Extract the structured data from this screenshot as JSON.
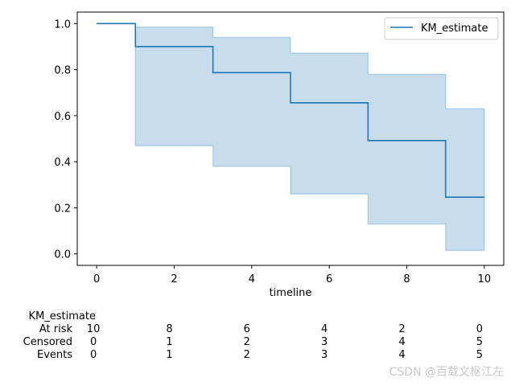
{
  "chart_data": {
    "type": "line",
    "xlabel": "timeline",
    "ylabel": "",
    "xlim": [
      -0.5,
      10.5
    ],
    "ylim": [
      -0.05,
      1.05
    ],
    "xticks": [
      0,
      2,
      4,
      6,
      8,
      10
    ],
    "yticks": [
      0.0,
      0.2,
      0.4,
      0.6,
      0.8,
      1.0
    ],
    "series": [
      {
        "name": "KM_estimate",
        "step": "post",
        "x": [
          0,
          1,
          3,
          5,
          7,
          9,
          10
        ],
        "y": [
          1.0,
          0.9,
          0.787,
          0.656,
          0.492,
          0.246,
          0.246
        ],
        "ci_upper": [
          1.0,
          0.985,
          0.94,
          0.872,
          0.78,
          0.63,
          0.63
        ],
        "ci_lower": [
          1.0,
          0.47,
          0.38,
          0.26,
          0.13,
          0.015,
          0.015
        ],
        "color": "#1f77b4"
      }
    ],
    "legend": {
      "position": "top-right",
      "entries": [
        "KM_estimate"
      ]
    }
  },
  "at_risk_table": {
    "title": "KM_estimate",
    "times": [
      0,
      2,
      4,
      6,
      8,
      10
    ],
    "rows": [
      {
        "label": "At risk",
        "values": [
          "10",
          "8",
          "6",
          "4",
          "2",
          "0"
        ]
      },
      {
        "label": "Censored",
        "values": [
          "0",
          "1",
          "2",
          "3",
          "4",
          "5"
        ]
      },
      {
        "label": "Events",
        "values": [
          "0",
          "1",
          "2",
          "3",
          "4",
          "5"
        ]
      }
    ]
  },
  "watermark": "CSDN @百载文枢江左"
}
